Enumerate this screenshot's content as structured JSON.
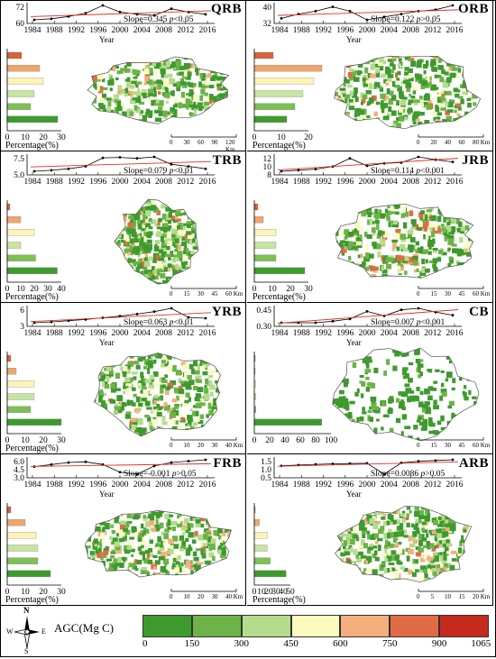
{
  "panels": [
    {
      "code": "QRB",
      "slope": "Slope=0.345",
      "p": "p<0.05",
      "yticks": [
        "72",
        "60"
      ],
      "xticks": [
        "1984",
        "1988",
        "1992",
        "1996",
        "2000",
        "2004",
        "2008",
        "2012",
        "2016"
      ],
      "year_label": "Year",
      "pct_label": "Percentage(%)",
      "pct_ticks": [
        "0",
        "10",
        "20",
        "30"
      ],
      "bars": [
        8,
        18,
        20,
        15,
        13,
        28
      ],
      "series": [
        60,
        61,
        63,
        66,
        73,
        67,
        65,
        64,
        70,
        67,
        65
      ],
      "scale": [
        "0",
        "30",
        "60",
        "90",
        "120 Km"
      ]
    },
    {
      "code": "ORB",
      "slope": "Slope=0.122",
      "p": "p>0.05",
      "yticks": [
        "40",
        "32"
      ],
      "xticks": [
        "1984",
        "1988",
        "1992",
        "1996",
        "2000",
        "2004",
        "2008",
        "2012",
        "2016"
      ],
      "year_label": "Year",
      "pct_label": "Percentage(%)",
      "pct_ticks": [
        "0",
        "10",
        "20"
      ],
      "bars": [
        7,
        25,
        22,
        18,
        15,
        12
      ],
      "series": [
        32,
        35,
        37,
        40,
        37,
        31,
        33,
        35,
        37,
        38,
        41
      ],
      "scale": [
        "0",
        "20",
        "40",
        "60",
        "80 Km"
      ]
    },
    {
      "code": "TRB",
      "slope": "Slope=0.079",
      "p": "p<0.01",
      "yticks": [
        "7.5",
        "5.0"
      ],
      "xticks": [
        "1984",
        "1988",
        "1992",
        "1996",
        "2000",
        "2004",
        "2008",
        "2012",
        "2016"
      ],
      "year_label": "",
      "pct_label": "Percentage(%)",
      "pct_ticks": [
        "0",
        "10",
        "20",
        "30",
        "40"
      ],
      "bars": [
        2,
        10,
        20,
        10,
        21,
        37
      ],
      "series": [
        5.0,
        5.2,
        5.5,
        6.0,
        7.7,
        7.8,
        7.6,
        7.9,
        6.4,
        6.0,
        5.5
      ],
      "scale": [
        "0",
        "15",
        "30",
        "45",
        "60 Km"
      ]
    },
    {
      "code": "JRB",
      "slope": "Slope=0.114",
      "p": "p<0.001",
      "yticks": [
        "12",
        "10",
        "8"
      ],
      "xticks": [
        "1984",
        "1988",
        "1992",
        "1996",
        "2000",
        "2004",
        "2008",
        "2012",
        "2016"
      ],
      "year_label": "",
      "pct_label": "Percentage(%)",
      "pct_ticks": [
        "0",
        "10",
        "20",
        "30"
      ],
      "bars": [
        2,
        5,
        12,
        12,
        12,
        28
      ],
      "series": [
        8,
        8.3,
        8.6,
        9.3,
        11.6,
        9.5,
        10.2,
        10.4,
        12,
        11.2,
        10.6
      ],
      "scale": [
        "0",
        "15",
        "30",
        "45",
        "60 Km"
      ]
    },
    {
      "code": "YRB",
      "slope": "Slope=0.063",
      "p": "p<0.01",
      "yticks": [
        "6",
        "3"
      ],
      "xticks": [
        "1984",
        "1988",
        "1992",
        "1996",
        "2000",
        "2004",
        "2008",
        "2012",
        "2016"
      ],
      "year_label": "Year",
      "pct_label": "Percentage(%)",
      "pct_ticks": [
        "0",
        "10",
        "20",
        "30"
      ],
      "bars": [
        2,
        5,
        15,
        15,
        13,
        30
      ],
      "series": [
        3.3,
        3.5,
        3.8,
        4.1,
        4.5,
        4.9,
        5.4,
        6.0,
        6.8,
        4.6,
        4.4
      ],
      "scale": [
        "0",
        "10",
        "20",
        "30",
        "40 Km"
      ]
    },
    {
      "code": "CB",
      "slope": "Slope=0.007",
      "p": "p<0.001",
      "yticks": [
        "0.45",
        "0.30"
      ],
      "xticks": [
        "1984",
        "1988",
        "1992",
        "1996",
        "2000",
        "2004",
        "2008",
        "2012",
        "2016"
      ],
      "year_label": "Year",
      "pct_label": "",
      "pct_ticks": [
        "0",
        "20",
        "40",
        "60",
        "80",
        "100"
      ],
      "bars": [
        1,
        1,
        2,
        2,
        2,
        88
      ],
      "series": [
        0.31,
        0.31,
        0.31,
        0.33,
        0.36,
        0.46,
        0.4,
        0.48,
        0.5,
        0.45,
        0.41
      ],
      "scale": [
        "0",
        "15",
        "30",
        "45",
        "60 Km"
      ]
    },
    {
      "code": "FRB",
      "slope": "Slope=-0.001",
      "p": "p>0.05",
      "yticks": [
        "6.0",
        "4.5",
        "3.0"
      ],
      "xticks": [
        "1984",
        "1988",
        "1992",
        "1996",
        "2000",
        "2004",
        "2008",
        "2012",
        "2016"
      ],
      "year_label": "Year",
      "pct_label": "Percentage(%)",
      "pct_ticks": [
        "0",
        "10",
        "20",
        "30"
      ],
      "bars": [
        2,
        10,
        16,
        17,
        17,
        24
      ],
      "series": [
        5.0,
        5.3,
        5.6,
        5.7,
        5.3,
        4.2,
        3.9,
        5.1,
        5.6,
        5.8,
        6.0
      ],
      "scale": [
        "0",
        "10",
        "20",
        "30",
        "40 Km"
      ]
    },
    {
      "code": "ARB",
      "slope": "Slope=0.0086",
      "p": "p>0.05",
      "yticks": [
        "1.5",
        "1.0",
        "0.5"
      ],
      "xticks": [
        "1984",
        "1988",
        "1992",
        "1996",
        "2000",
        "2004",
        "2008",
        "2012",
        "2016"
      ],
      "year_label": "Year",
      "pct_label": "Percentage(%)",
      "pct_ticks": [
        "0",
        "10",
        "20",
        "30",
        "40",
        "50"
      ],
      "bars": [
        1,
        7,
        18,
        18,
        22,
        44
      ],
      "series": [
        1.15,
        1.2,
        1.25,
        1.28,
        1.3,
        1.32,
        0.6,
        1.35,
        1.45,
        1.5,
        1.55
      ],
      "scale": [
        "0",
        "5",
        "10",
        "15",
        "20 Km"
      ]
    }
  ],
  "legend": {
    "north_label": "N",
    "south_label": "S",
    "east_label": "E",
    "west_label": "W",
    "title": "AGC(Mg C)",
    "ticks": [
      "0",
      "150",
      "300",
      "450",
      "600",
      "750",
      "900",
      "1065"
    ],
    "colors": [
      "#3f9a2e",
      "#6db348",
      "#b5dc8c",
      "#fbfbbf",
      "#f3b07c",
      "#e06c44",
      "#c52a1c"
    ]
  },
  "bar_colors": [
    "#d9623b",
    "#f0a56b",
    "#fbf4b6",
    "#c7e5a0",
    "#7ebf56",
    "#3f9a2e"
  ],
  "map_colors": [
    "#3f9a2e",
    "#6db348",
    "#b5dc8c",
    "#fbfbbf",
    "#f3b07c",
    "#e06c44"
  ]
}
